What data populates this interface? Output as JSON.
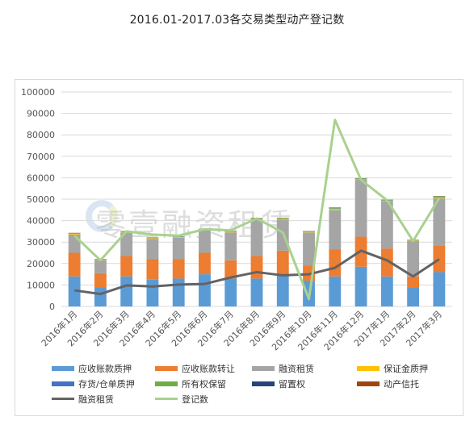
{
  "page": {
    "title": "2016.01-2017.03各交易类型动产登记数"
  },
  "watermark": {
    "text": "零壹融资租赁"
  },
  "chart_data": {
    "type": "bar",
    "stacked": true,
    "title": "2016.01-2017.03各交易类型动产登记数",
    "categories": [
      "2016年1月",
      "2016年2月",
      "2016年3月",
      "2016年4月",
      "2016年5月",
      "2016年6月",
      "2016年7月",
      "2016年8月",
      "2016年9月",
      "2016年10月",
      "2016年11月",
      "2016年12月",
      "2017年1月",
      "2017年2月",
      "2017年3月"
    ],
    "ylim": [
      0,
      100000
    ],
    "yticks": [
      0,
      10000,
      20000,
      30000,
      40000,
      50000,
      60000,
      70000,
      80000,
      90000,
      100000
    ],
    "grid": true,
    "legend_position": "bottom",
    "series": [
      {
        "name": "应收账款质押",
        "type": "bar",
        "color": "#5b9bd5",
        "values": [
          14000,
          9000,
          14000,
          12500,
          13000,
          15000,
          13000,
          13000,
          15000,
          12000,
          14000,
          18500,
          14000,
          9000,
          16000
        ]
      },
      {
        "name": "应收账款转让",
        "type": "bar",
        "color": "#ed7d31",
        "values": [
          11000,
          6500,
          9500,
          9500,
          9000,
          10000,
          8500,
          10500,
          11000,
          7000,
          12500,
          14000,
          13000,
          5000,
          12500
        ]
      },
      {
        "name": "融资租赁",
        "type": "bar",
        "color": "#a5a5a5",
        "values": [
          8500,
          6000,
          11000,
          9500,
          10000,
          10500,
          13000,
          17000,
          14500,
          15500,
          18500,
          26500,
          22000,
          16500,
          22000
        ]
      },
      {
        "name": "保证金质押",
        "type": "bar",
        "color": "#ffc000",
        "values": [
          300,
          200,
          300,
          300,
          300,
          300,
          300,
          300,
          300,
          300,
          500,
          300,
          300,
          200,
          300
        ]
      },
      {
        "name": "存货/仓单质押",
        "type": "bar",
        "color": "#4472c4",
        "values": [
          100,
          100,
          100,
          100,
          100,
          100,
          100,
          100,
          100,
          100,
          100,
          100,
          100,
          100,
          100
        ]
      },
      {
        "name": "所有权保留",
        "type": "bar",
        "color": "#70ad47",
        "values": [
          300,
          200,
          200,
          200,
          200,
          200,
          200,
          300,
          300,
          200,
          500,
          300,
          300,
          200,
          500
        ]
      },
      {
        "name": "留置权",
        "type": "bar",
        "color": "#264478",
        "values": [
          50,
          50,
          50,
          50,
          50,
          50,
          50,
          50,
          50,
          50,
          50,
          50,
          50,
          50,
          50
        ]
      },
      {
        "name": "动产信托",
        "type": "bar",
        "color": "#9e480e",
        "values": [
          50,
          50,
          50,
          50,
          50,
          50,
          50,
          50,
          50,
          50,
          50,
          50,
          50,
          50,
          50
        ]
      },
      {
        "name": "融资租赁",
        "type": "line",
        "color": "#636363",
        "values": [
          7500,
          5800,
          9800,
          9300,
          10200,
          10500,
          13500,
          16000,
          14500,
          15000,
          18000,
          26000,
          21500,
          14000,
          22000
        ]
      },
      {
        "name": "登记数",
        "type": "line",
        "color": "#a9d18e",
        "values": [
          33000,
          21500,
          35000,
          33500,
          33000,
          36000,
          35500,
          41000,
          34500,
          3500,
          87000,
          59000,
          49500,
          30500,
          50500
        ]
      }
    ]
  }
}
